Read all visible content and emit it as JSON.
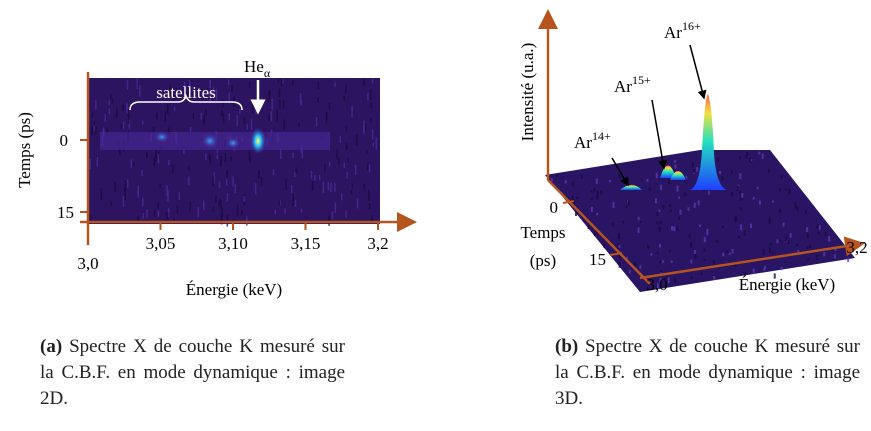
{
  "panel_a": {
    "y_label": "Temps (ps)",
    "y_ticks": [
      "0",
      "15"
    ],
    "x_label": "Énergie (keV)",
    "x_ticks": [
      "3,0",
      "3,05",
      "3,10",
      "3,15",
      "3,2"
    ],
    "satellites": "satellites",
    "he": {
      "base": "He",
      "sub": "α"
    },
    "caption": {
      "label": "(a)",
      "text": "Spectre X de couche K mesuré sur la C.B.F. en mode dynamique : image 2D."
    }
  },
  "panel_b": {
    "z_label": "Intensité (u.a.)",
    "time_label": "Temps (ps)",
    "time_ticks": [
      "0",
      "15"
    ],
    "energy_label": "Énergie (keV)",
    "energy_ticks": [
      "3,0",
      "3,2"
    ],
    "ions": [
      {
        "base": "Ar",
        "sup": "14+"
      },
      {
        "base": "Ar",
        "sup": "15+"
      },
      {
        "base": "Ar",
        "sup": "16+"
      }
    ],
    "caption": {
      "label": "(b)",
      "text": "Spectre X de couche K mesuré sur la C.B.F. en mode dynamique : image 3D."
    }
  }
}
